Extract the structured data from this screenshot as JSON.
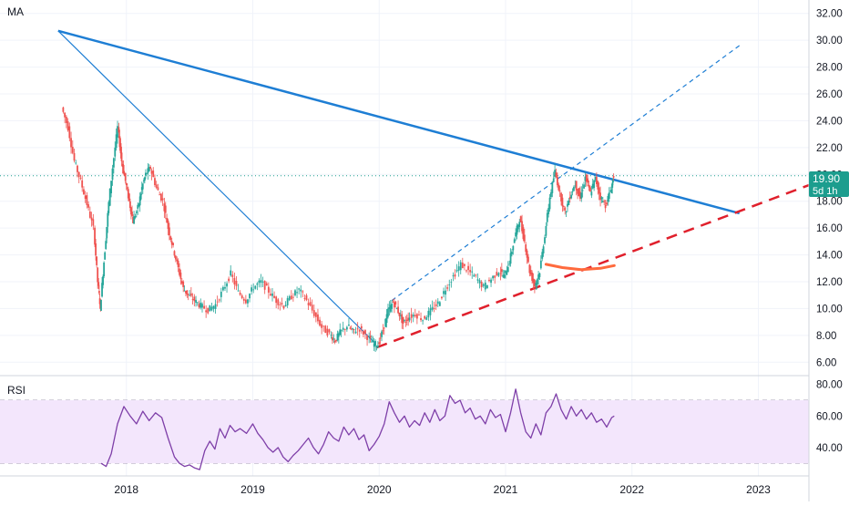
{
  "chart_data": {
    "type": "candlestick",
    "symbol_label": "MA",
    "price_axis": {
      "ticks": [
        "32.00",
        "30.00",
        "28.00",
        "26.00",
        "24.00",
        "22.00",
        "20.00",
        "18.00",
        "16.00",
        "14.00",
        "12.00",
        "10.00",
        "8.00",
        "6.00"
      ],
      "range": [
        5.0,
        33.0
      ]
    },
    "current_price": {
      "value": 19.9,
      "label": "19.90",
      "countdown": "5d 1h"
    },
    "time_axis": {
      "ticks": [
        "2018",
        "2019",
        "2020",
        "2021",
        "2022",
        "2023"
      ],
      "range": [
        2017.0,
        2023.4
      ]
    },
    "price_series": [
      [
        2017.5,
        25.0
      ],
      [
        2017.55,
        23.5
      ],
      [
        2017.6,
        21.0
      ],
      [
        2017.65,
        19.5
      ],
      [
        2017.7,
        17.8
      ],
      [
        2017.75,
        16.0
      ],
      [
        2017.78,
        12.0
      ],
      [
        2017.8,
        10.0
      ],
      [
        2017.83,
        13.5
      ],
      [
        2017.86,
        17.0
      ],
      [
        2017.9,
        20.5
      ],
      [
        2017.94,
        23.5
      ],
      [
        2017.97,
        21.0
      ],
      [
        2018.0,
        19.5
      ],
      [
        2018.03,
        18.0
      ],
      [
        2018.06,
        16.5
      ],
      [
        2018.1,
        17.5
      ],
      [
        2018.13,
        19.0
      ],
      [
        2018.16,
        20.0
      ],
      [
        2018.2,
        20.5
      ],
      [
        2018.25,
        19.0
      ],
      [
        2018.3,
        18.0
      ],
      [
        2018.34,
        16.0
      ],
      [
        2018.38,
        14.5
      ],
      [
        2018.42,
        13.0
      ],
      [
        2018.46,
        11.5
      ],
      [
        2018.5,
        11.0
      ],
      [
        2018.55,
        10.6
      ],
      [
        2018.6,
        10.2
      ],
      [
        2018.66,
        9.9
      ],
      [
        2018.72,
        10.3
      ],
      [
        2018.78,
        11.4
      ],
      [
        2018.84,
        12.6
      ],
      [
        2018.9,
        11.2
      ],
      [
        2018.96,
        10.6
      ],
      [
        2019.02,
        11.6
      ],
      [
        2019.08,
        12.0
      ],
      [
        2019.14,
        11.3
      ],
      [
        2019.2,
        10.6
      ],
      [
        2019.26,
        10.2
      ],
      [
        2019.32,
        10.9
      ],
      [
        2019.38,
        11.4
      ],
      [
        2019.44,
        10.6
      ],
      [
        2019.5,
        9.6
      ],
      [
        2019.56,
        8.6
      ],
      [
        2019.62,
        8.1
      ],
      [
        2019.66,
        7.6
      ],
      [
        2019.7,
        8.2
      ],
      [
        2019.76,
        8.7
      ],
      [
        2019.8,
        8.3
      ],
      [
        2019.86,
        8.5
      ],
      [
        2019.92,
        7.9
      ],
      [
        2019.96,
        7.4
      ],
      [
        2020.0,
        7.3
      ],
      [
        2020.04,
        8.4
      ],
      [
        2020.08,
        9.8
      ],
      [
        2020.12,
        10.5
      ],
      [
        2020.16,
        9.8
      ],
      [
        2020.2,
        8.9
      ],
      [
        2020.24,
        9.3
      ],
      [
        2020.3,
        9.6
      ],
      [
        2020.36,
        9.2
      ],
      [
        2020.42,
        9.8
      ],
      [
        2020.48,
        10.4
      ],
      [
        2020.54,
        11.5
      ],
      [
        2020.6,
        12.4
      ],
      [
        2020.66,
        13.3
      ],
      [
        2020.72,
        12.8
      ],
      [
        2020.78,
        12.3
      ],
      [
        2020.84,
        11.6
      ],
      [
        2020.9,
        12.2
      ],
      [
        2020.96,
        12.8
      ],
      [
        2021.0,
        12.4
      ],
      [
        2021.04,
        13.5
      ],
      [
        2021.08,
        15.2
      ],
      [
        2021.12,
        16.7
      ],
      [
        2021.16,
        15.0
      ],
      [
        2021.2,
        12.8
      ],
      [
        2021.24,
        11.7
      ],
      [
        2021.28,
        12.8
      ],
      [
        2021.32,
        15.5
      ],
      [
        2021.36,
        18.3
      ],
      [
        2021.4,
        20.2
      ],
      [
        2021.44,
        18.6
      ],
      [
        2021.48,
        17.1
      ],
      [
        2021.52,
        18.4
      ],
      [
        2021.56,
        19.3
      ],
      [
        2021.6,
        18.2
      ],
      [
        2021.64,
        19.8
      ],
      [
        2021.68,
        18.6
      ],
      [
        2021.72,
        19.7
      ],
      [
        2021.76,
        18.3
      ],
      [
        2021.8,
        17.7
      ],
      [
        2021.84,
        18.8
      ],
      [
        2021.86,
        19.9
      ]
    ],
    "drawings": [
      {
        "name": "major-resistance-line",
        "color": "#1e7ed4",
        "style": "solid",
        "from": [
          2017.46,
          30.7
        ],
        "to": [
          2022.85,
          17.1
        ]
      },
      {
        "name": "steep-downtrend-line",
        "color": "#1e7ed4",
        "style": "solid",
        "from": [
          2017.46,
          30.7
        ],
        "to": [
          2019.97,
          7.4
        ]
      },
      {
        "name": "uptrend-channel-line",
        "color": "#1e7ed4",
        "style": "dashed",
        "from": [
          2020.1,
          10.6
        ],
        "to": [
          2022.85,
          29.6
        ]
      },
      {
        "name": "support-trend-line",
        "color": "#e0202c",
        "style": "dashed",
        "from": [
          2019.98,
          7.1
        ],
        "to": [
          2023.4,
          19.2
        ]
      }
    ],
    "curve": {
      "name": "support-curve",
      "color": "#ff6a3d",
      "points": [
        [
          2021.32,
          13.3
        ],
        [
          2021.45,
          13.05
        ],
        [
          2021.6,
          12.9
        ],
        [
          2021.75,
          13.0
        ],
        [
          2021.86,
          13.2
        ]
      ]
    },
    "rsi": {
      "label": "RSI",
      "ticks": [
        "80.00",
        "60.00",
        "40.00"
      ],
      "range": [
        22,
        85
      ],
      "band": [
        30,
        70
      ],
      "color": "#7e3fa8",
      "band_color": "#f3e6fc",
      "series": [
        [
          2017.8,
          30
        ],
        [
          2017.84,
          28
        ],
        [
          2017.88,
          36
        ],
        [
          2017.93,
          55
        ],
        [
          2017.98,
          66
        ],
        [
          2018.03,
          60
        ],
        [
          2018.08,
          55
        ],
        [
          2018.13,
          63
        ],
        [
          2018.18,
          57
        ],
        [
          2018.23,
          62
        ],
        [
          2018.28,
          59
        ],
        [
          2018.33,
          46
        ],
        [
          2018.38,
          34
        ],
        [
          2018.42,
          30
        ],
        [
          2018.46,
          28
        ],
        [
          2018.5,
          29
        ],
        [
          2018.54,
          27
        ],
        [
          2018.58,
          26
        ],
        [
          2018.62,
          38
        ],
        [
          2018.66,
          44
        ],
        [
          2018.7,
          39
        ],
        [
          2018.74,
          52
        ],
        [
          2018.78,
          46
        ],
        [
          2018.82,
          54
        ],
        [
          2018.86,
          50
        ],
        [
          2018.9,
          52
        ],
        [
          2018.95,
          49
        ],
        [
          2019.0,
          55
        ],
        [
          2019.04,
          49
        ],
        [
          2019.08,
          45
        ],
        [
          2019.12,
          40
        ],
        [
          2019.16,
          37
        ],
        [
          2019.2,
          40
        ],
        [
          2019.24,
          34
        ],
        [
          2019.28,
          31
        ],
        [
          2019.32,
          35
        ],
        [
          2019.36,
          38
        ],
        [
          2019.4,
          42
        ],
        [
          2019.44,
          46
        ],
        [
          2019.48,
          40
        ],
        [
          2019.52,
          36
        ],
        [
          2019.56,
          42
        ],
        [
          2019.6,
          50
        ],
        [
          2019.64,
          46
        ],
        [
          2019.68,
          44
        ],
        [
          2019.72,
          53
        ],
        [
          2019.76,
          48
        ],
        [
          2019.8,
          52
        ],
        [
          2019.84,
          45
        ],
        [
          2019.88,
          48
        ],
        [
          2019.92,
          38
        ],
        [
          2019.96,
          42
        ],
        [
          2020.0,
          47
        ],
        [
          2020.04,
          55
        ],
        [
          2020.08,
          69
        ],
        [
          2020.12,
          62
        ],
        [
          2020.16,
          56
        ],
        [
          2020.2,
          60
        ],
        [
          2020.24,
          53
        ],
        [
          2020.28,
          57
        ],
        [
          2020.32,
          54
        ],
        [
          2020.36,
          62
        ],
        [
          2020.4,
          56
        ],
        [
          2020.44,
          64
        ],
        [
          2020.48,
          57
        ],
        [
          2020.52,
          60
        ],
        [
          2020.56,
          73
        ],
        [
          2020.6,
          68
        ],
        [
          2020.64,
          70
        ],
        [
          2020.68,
          62
        ],
        [
          2020.72,
          65
        ],
        [
          2020.76,
          58
        ],
        [
          2020.8,
          60
        ],
        [
          2020.84,
          55
        ],
        [
          2020.88,
          64
        ],
        [
          2020.92,
          59
        ],
        [
          2020.96,
          61
        ],
        [
          2021.0,
          50
        ],
        [
          2021.04,
          62
        ],
        [
          2021.08,
          77
        ],
        [
          2021.12,
          62
        ],
        [
          2021.16,
          50
        ],
        [
          2021.2,
          46
        ],
        [
          2021.24,
          55
        ],
        [
          2021.28,
          48
        ],
        [
          2021.32,
          62
        ],
        [
          2021.36,
          66
        ],
        [
          2021.4,
          74
        ],
        [
          2021.44,
          64
        ],
        [
          2021.48,
          58
        ],
        [
          2021.52,
          66
        ],
        [
          2021.56,
          60
        ],
        [
          2021.6,
          64
        ],
        [
          2021.64,
          58
        ],
        [
          2021.68,
          62
        ],
        [
          2021.72,
          56
        ],
        [
          2021.76,
          58
        ],
        [
          2021.8,
          53
        ],
        [
          2021.84,
          59
        ],
        [
          2021.86,
          60
        ]
      ]
    }
  }
}
